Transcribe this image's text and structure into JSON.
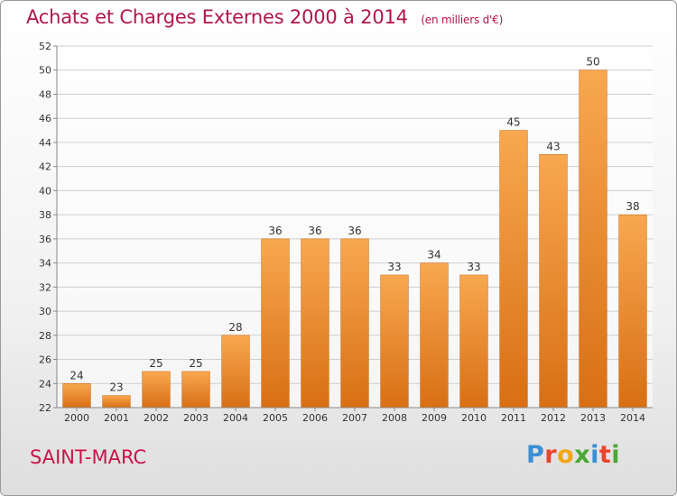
{
  "header": {
    "title": "Achats et Charges Externes 2000 à 2014",
    "subtitle": "(en milliers d'€)"
  },
  "footer": {
    "city": "SAINT-MARC",
    "logo_letters": [
      "P",
      "r",
      "o",
      "x",
      "i",
      "t",
      "i"
    ],
    "logo_colors": [
      "#3b8fd4",
      "#e8452c",
      "#f2a516",
      "#4aa834",
      "#3b8fd4",
      "#e8452c",
      "#4aa834"
    ]
  },
  "colors": {
    "bar_top": "#f8a850",
    "bar_bottom": "#d86f14",
    "title": "#b0174a",
    "city": "#c8144a"
  },
  "chart_data": {
    "type": "bar",
    "title": "Achats et Charges Externes 2000 à 2014",
    "subtitle": "(en milliers d'€)",
    "categories": [
      "2000",
      "2001",
      "2002",
      "2003",
      "2004",
      "2005",
      "2006",
      "2007",
      "2008",
      "2009",
      "2010",
      "2011",
      "2012",
      "2013",
      "2014"
    ],
    "values": [
      24,
      23,
      25,
      25,
      28,
      36,
      36,
      36,
      33,
      34,
      33,
      45,
      43,
      50,
      38
    ],
    "ylim": [
      22,
      52
    ],
    "yticks": [
      22,
      24,
      26,
      28,
      30,
      32,
      34,
      36,
      38,
      40,
      42,
      44,
      46,
      48,
      50,
      52
    ],
    "grid": true,
    "data_labels": true
  }
}
